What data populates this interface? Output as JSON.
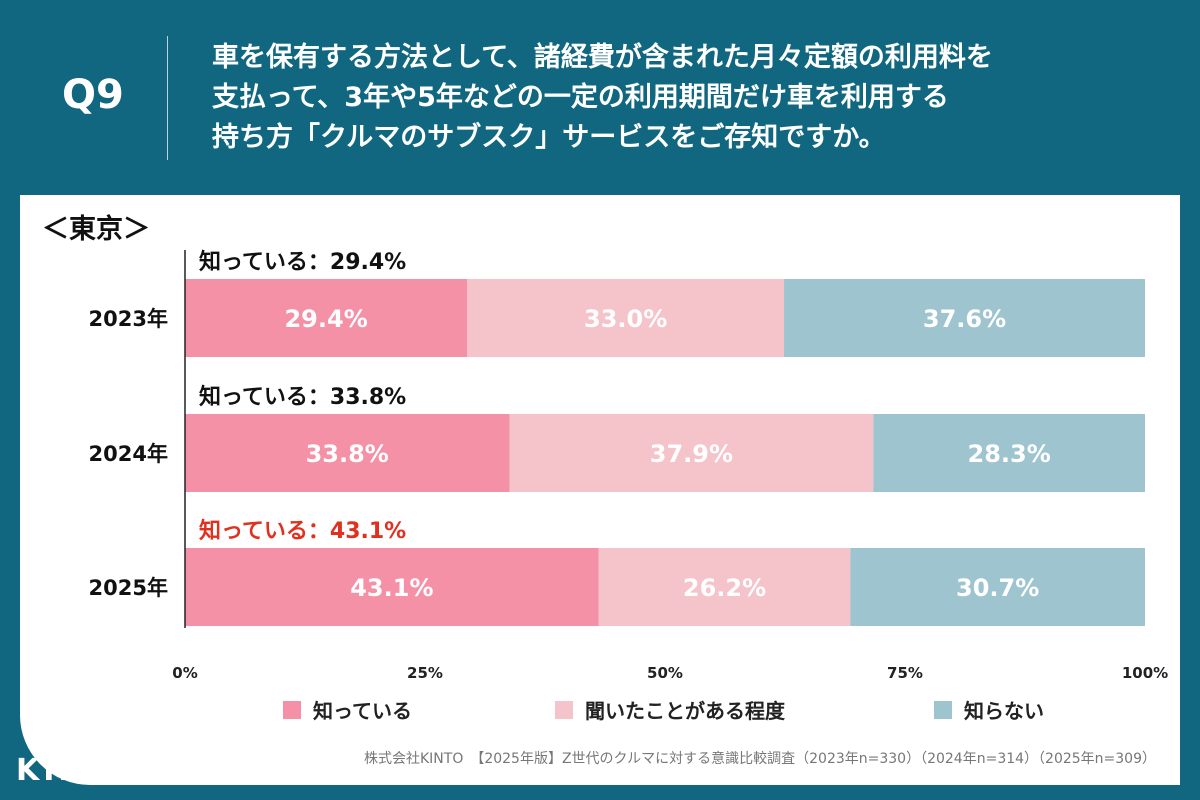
{
  "header": {
    "q_label": "Q9",
    "question_lines": [
      "車を保有する方法として、諸経費が含まれた月々定額の利用料を",
      "支払って、3年や5年などの一定の利用期間だけ車を利用する",
      "持ち方「クルマのサブスク」サービスをご存知ですか。"
    ]
  },
  "region_label": "＜東京＞",
  "chart_data": {
    "type": "bar",
    "orientation": "horizontal",
    "stacked": true,
    "percent": true,
    "categories": [
      "2023年",
      "2024年",
      "2025年"
    ],
    "series": [
      {
        "name": "知っている",
        "values": [
          29.4,
          33.8,
          43.1
        ],
        "color": "#f491a7"
      },
      {
        "name": "聞いたことがある程度",
        "values": [
          33.0,
          37.9,
          26.2
        ],
        "color": "#f5c3ca"
      },
      {
        "name": "知らない",
        "values": [
          37.6,
          28.3,
          30.7
        ],
        "color": "#9dc4cf"
      }
    ],
    "data_labels": [
      [
        "29.4%",
        "33.0%",
        "37.6%"
      ],
      [
        "33.8%",
        "37.9%",
        "28.3%"
      ],
      [
        "43.1%",
        "26.2%",
        "30.7%"
      ]
    ],
    "annotations": [
      "知っている：29.4%",
      "知っている：33.8%",
      "知っている：43.1%"
    ],
    "annotation_colors": [
      "#111111",
      "#111111",
      "#e0301e"
    ],
    "x_ticks": [
      "0%",
      "25%",
      "50%",
      "75%",
      "100%"
    ],
    "xlim": [
      0,
      100
    ],
    "legend_position": "bottom"
  },
  "footnote": "株式会社KINTO　【2025年版】Z世代のクルマに対する意識比較調査（2023年n=330）（2024年n=314）（2025年n=309）",
  "brand": {
    "name": "KINTO"
  }
}
